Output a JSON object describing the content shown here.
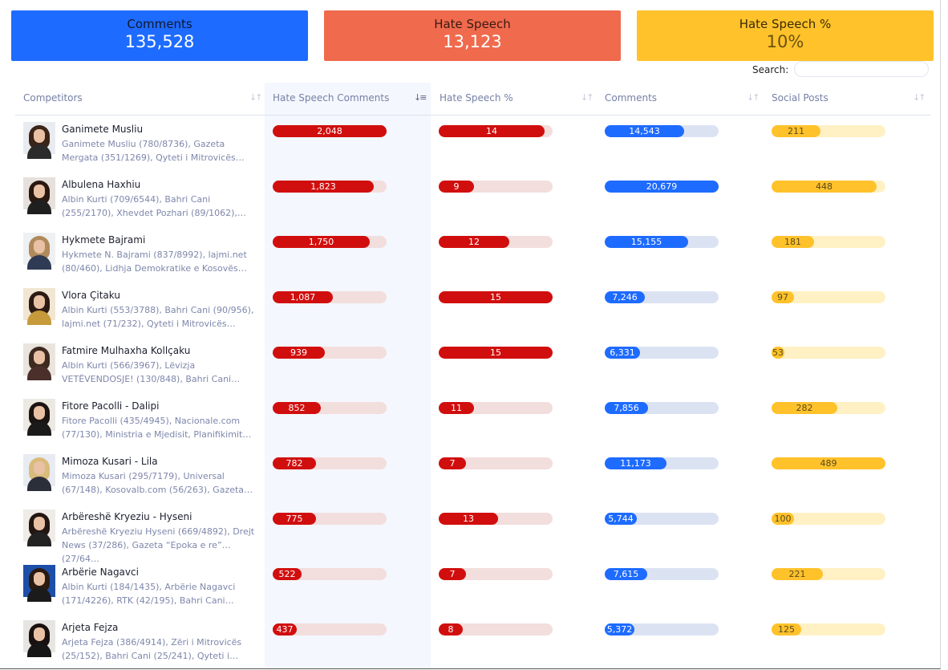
{
  "summary": {
    "comments": {
      "label": "Comments",
      "value": "135,528"
    },
    "hate_speech": {
      "label": "Hate Speech",
      "value": "13,123"
    },
    "hate_speech_pct": {
      "label": "Hate Speech %",
      "value": "10%"
    }
  },
  "search": {
    "label": "Search:",
    "value": ""
  },
  "columns": {
    "competitors": "Competitors",
    "hate_comments": "Hate Speech Comments",
    "hate_pct": "Hate Speech %",
    "comments": "Comments",
    "social_posts": "Social Posts"
  },
  "sort": {
    "active_column": "hate_comments",
    "direction": "descending"
  },
  "colors": {
    "comments": "#1e6bff",
    "hate": "#d10e0e",
    "hate_card": "#f06a4d",
    "social": "#ffc22b"
  },
  "rows": [
    {
      "name": "Ganimete Musliu",
      "sources": "Ganimete Musliu (780/8736), Gazeta Mergata (351/1269), Qyteti i Mitrovicës…",
      "hate": "2,048",
      "hate_frac": 1.0,
      "pct": "14",
      "pct_frac": 0.93,
      "comments": "14,543",
      "comments_frac": 0.7,
      "social": "211",
      "social_frac": 0.43
    },
    {
      "name": "Albulena Haxhiu",
      "sources": "Albin Kurti (709/6544), Bahri Cani (255/2170), Xhevdet Pozhari (89/1062),…",
      "hate": "1,823",
      "hate_frac": 0.89,
      "pct": "9",
      "pct_frac": 0.31,
      "comments": "20,679",
      "comments_frac": 1.0,
      "social": "448",
      "social_frac": 0.92
    },
    {
      "name": "Hykmete Bajrami",
      "sources": "Hykmete N. Bajrami (837/8992), lajmi.net (80/460), Lidhja Demokratike e Kosovës…",
      "hate": "1,750",
      "hate_frac": 0.85,
      "pct": "12",
      "pct_frac": 0.62,
      "comments": "15,155",
      "comments_frac": 0.73,
      "social": "181",
      "social_frac": 0.37
    },
    {
      "name": "Vlora Çitaku",
      "sources": "Albin Kurti (553/3788), Bahri Cani (90/956), lajmi.net (71/232), Qyteti i Mitrovicës…",
      "hate": "1,087",
      "hate_frac": 0.53,
      "pct": "15",
      "pct_frac": 1.0,
      "comments": "7,246",
      "comments_frac": 0.35,
      "social": "97",
      "social_frac": 0.2
    },
    {
      "name": "Fatmire Mulhaxha Kollçaku",
      "sources": "Albin Kurti (566/3967), Lëvizja VETËVENDOSJE! (130/848), Bahri Cani…",
      "hate": "939",
      "hate_frac": 0.46,
      "pct": "15",
      "pct_frac": 1.0,
      "comments": "6,331",
      "comments_frac": 0.31,
      "social": "53",
      "social_frac": 0.11
    },
    {
      "name": "Fitore Pacolli - Dalipi",
      "sources": "Fitore Pacolli (435/4945), Nacionale.com (77/130), Ministria e Mjedisit, Planifikimit…",
      "hate": "852",
      "hate_frac": 0.42,
      "pct": "11",
      "pct_frac": 0.31,
      "comments": "7,856",
      "comments_frac": 0.38,
      "social": "282",
      "social_frac": 0.58
    },
    {
      "name": "Mimoza Kusari - Lila",
      "sources": "Mimoza Kusari (295/7179), Universal (67/148), Kosovalb.com (56/263), Gazeta…",
      "hate": "782",
      "hate_frac": 0.38,
      "pct": "7",
      "pct_frac": 0.24,
      "comments": "11,173",
      "comments_frac": 0.54,
      "social": "489",
      "social_frac": 1.0
    },
    {
      "name": "Arbëreshë Kryeziu - Hyseni",
      "sources": "Arbëreshë Kryeziu Hyseni (669/4892), Drejt News (37/286), Gazeta “Epoka e re” (27/64…",
      "hate": "775",
      "hate_frac": 0.38,
      "pct": "13",
      "pct_frac": 0.52,
      "comments": "5,744",
      "comments_frac": 0.28,
      "social": "100",
      "social_frac": 0.2
    },
    {
      "name": "Arbërie Nagavci",
      "sources": "Albin Kurti (184/1435), Arbërie Nagavci (171/4226), RTK (42/195), Bahri Cani…",
      "hate": "522",
      "hate_frac": 0.25,
      "pct": "7",
      "pct_frac": 0.24,
      "comments": "7,615",
      "comments_frac": 0.37,
      "social": "221",
      "social_frac": 0.45
    },
    {
      "name": "Arjeta Fejza",
      "sources": "Arjeta Fejza (386/4914), Zëri i Mitrovicës (25/152), Bahri Cani (25/241), Qyteti i…",
      "hate": "437",
      "hate_frac": 0.21,
      "pct": "8",
      "pct_frac": 0.14,
      "comments": "5,372",
      "comments_frac": 0.26,
      "social": "125",
      "social_frac": 0.26
    }
  ]
}
